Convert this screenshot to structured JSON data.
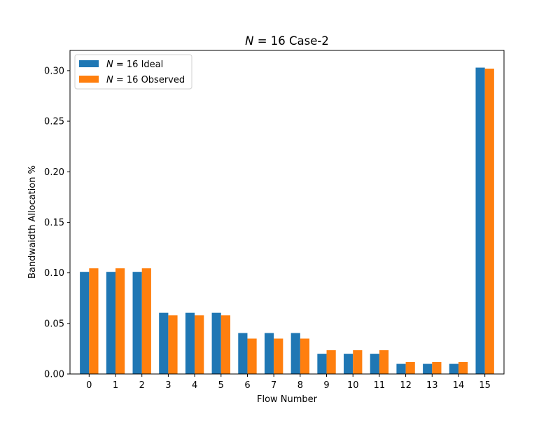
{
  "chart_data": {
    "type": "bar",
    "title_var": "N",
    "title_rest": " = 16 Case-2",
    "xlabel": "Flow Number",
    "ylabel": "Bandwaidth Allocation %",
    "ylim": [
      0,
      0.32
    ],
    "yticks": [
      "0.00",
      "0.05",
      "0.10",
      "0.15",
      "0.20",
      "0.25",
      "0.30"
    ],
    "categories": [
      "0",
      "1",
      "2",
      "3",
      "4",
      "5",
      "6",
      "7",
      "8",
      "9",
      "10",
      "11",
      "12",
      "13",
      "14",
      "15"
    ],
    "series": [
      {
        "name_var": "N",
        "name_rest": " = 16 Ideal",
        "color": "#1f77b4",
        "values": [
          0.101,
          0.101,
          0.101,
          0.0605,
          0.0605,
          0.0605,
          0.0405,
          0.0405,
          0.0405,
          0.02,
          0.02,
          0.02,
          0.01,
          0.01,
          0.01,
          0.303
        ]
      },
      {
        "name_var": "N",
        "name_rest": " = 16 Observed",
        "color": "#ff7f0e",
        "values": [
          0.1045,
          0.1045,
          0.1045,
          0.058,
          0.058,
          0.058,
          0.035,
          0.035,
          0.035,
          0.0235,
          0.0235,
          0.0235,
          0.0118,
          0.0118,
          0.0118,
          0.302
        ]
      }
    ],
    "legend_position": "upper-left",
    "grid": false
  }
}
